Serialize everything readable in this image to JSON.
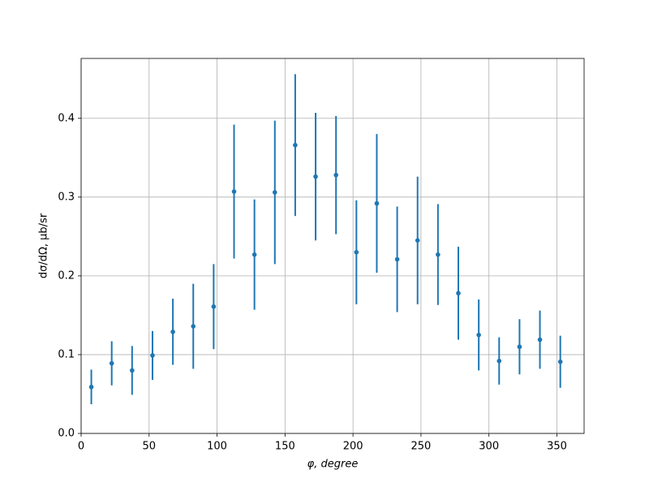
{
  "chart_data": {
    "type": "errorbar",
    "x": [
      7.5,
      22.5,
      37.5,
      52.5,
      67.5,
      82.5,
      97.5,
      112.5,
      127.5,
      142.5,
      157.5,
      172.5,
      187.5,
      202.5,
      217.5,
      232.5,
      247.5,
      262.5,
      277.5,
      292.5,
      307.5,
      322.5,
      337.5,
      352.5
    ],
    "values": [
      0.059,
      0.089,
      0.08,
      0.099,
      0.129,
      0.136,
      0.161,
      0.307,
      0.227,
      0.306,
      0.366,
      0.326,
      0.328,
      0.23,
      0.292,
      0.221,
      0.245,
      0.227,
      0.178,
      0.125,
      0.092,
      0.11,
      0.119,
      0.091
    ],
    "errors": [
      0.022,
      0.028,
      0.031,
      0.031,
      0.042,
      0.054,
      0.054,
      0.085,
      0.07,
      0.091,
      0.09,
      0.081,
      0.075,
      0.066,
      0.088,
      0.067,
      0.081,
      0.064,
      0.059,
      0.045,
      0.03,
      0.035,
      0.037,
      0.033
    ],
    "color": "#1f77b4",
    "x_label": "φ, degree",
    "y_label": "dσ/dΩ, μb/sr",
    "xlim": [
      0,
      370
    ],
    "xticks": [
      0,
      50,
      100,
      150,
      200,
      250,
      300,
      350
    ],
    "ylim": [
      0,
      0.476
    ],
    "yticks": [
      {
        "value": 0,
        "label": "0.0"
      },
      0.1,
      0.2,
      0.3,
      0.4
    ],
    "grid": true
  }
}
